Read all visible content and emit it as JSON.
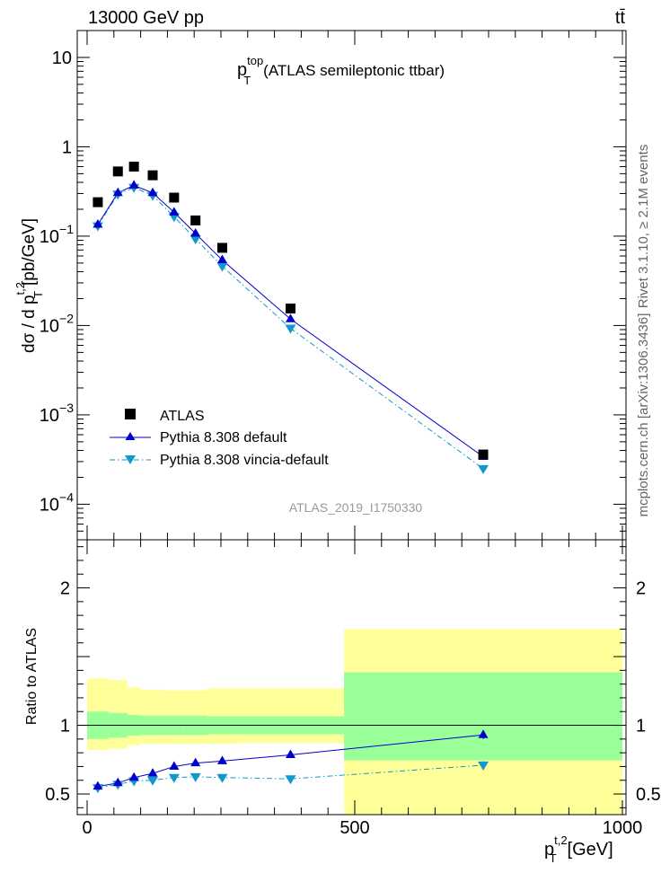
{
  "header": {
    "left": "13000 GeV pp",
    "right": "tt̄"
  },
  "side_texts": {
    "rivet": "Rivet 3.1.10, ≥ 2.1M events",
    "mcplots": "mcplots.cern.ch [arXiv:1306.3436]"
  },
  "chart_data": {
    "type": "scatter",
    "title_main": "p",
    "title_sup": "top",
    "title_sub": "T",
    "title_rest": "(ATLAS semileptonic ttbar)",
    "watermark": "ATLAS_2019_I1750330",
    "ylabel_main": {
      "a": "dσ / d p",
      "sup": "t,2",
      "sub": "T",
      "b": "[pb/GeV]"
    },
    "ylabel_ratio": "Ratio to ATLAS",
    "xlabel": {
      "main": "p",
      "sup": "t,2",
      "sub": "T",
      "rest": "[GeV]"
    },
    "xlim": [
      0,
      1000
    ],
    "ylim_main": [
      4e-05,
      20
    ],
    "yscale_main": "log",
    "ylim_ratio": [
      0.35,
      2.35
    ],
    "x_ticks": [
      "0",
      "500",
      "1000"
    ],
    "ratio_y_ticks": [
      "0.5",
      "1",
      "2"
    ],
    "main_y_ticks": [
      {
        "base": "10",
        "exp": "−4"
      },
      {
        "base": "10",
        "exp": "−3"
      },
      {
        "base": "10",
        "exp": "−2"
      },
      {
        "base": "10",
        "exp": "−1"
      },
      {
        "base": "1",
        "exp": ""
      },
      {
        "base": "10",
        "exp": ""
      }
    ],
    "legend_position": "bottom-left",
    "x": [
      20,
      57.5,
      87.5,
      122.5,
      162.5,
      202.5,
      252.5,
      380,
      740
    ],
    "bin_edges": [
      0,
      40,
      75,
      100,
      145,
      180,
      225,
      280,
      480,
      1000
    ],
    "series": [
      {
        "name": "ATLAS",
        "style": "data",
        "color": "#000000",
        "values": [
          0.24,
          0.53,
          0.6,
          0.48,
          0.27,
          0.15,
          0.074,
          0.0155,
          0.00036
        ]
      },
      {
        "name": "Pythia 8.308 default",
        "style": "line-triangle-up",
        "color": "#0000cc",
        "values": [
          0.135,
          0.305,
          0.37,
          0.305,
          0.185,
          0.107,
          0.054,
          0.0118,
          0.00034
        ]
      },
      {
        "name": "Pythia 8.308 vincia-default",
        "style": "dashdot-triangle-down",
        "color": "#1199cc",
        "values": [
          0.13,
          0.295,
          0.35,
          0.285,
          0.165,
          0.093,
          0.046,
          0.0093,
          0.00025
        ]
      }
    ],
    "ratio_series": [
      {
        "name": "Pythia 8.308 default",
        "values": [
          0.555,
          0.58,
          0.62,
          0.65,
          0.7,
          0.725,
          0.74,
          0.785,
          0.93
        ]
      },
      {
        "name": "Pythia 8.308 vincia-default",
        "values": [
          0.545,
          0.57,
          0.595,
          0.6,
          0.62,
          0.625,
          0.62,
          0.61,
          0.71
        ]
      }
    ],
    "ratio_bands": {
      "inner": [
        [
          0.9,
          1.1
        ],
        [
          0.91,
          1.09
        ],
        [
          0.925,
          1.075
        ],
        [
          0.93,
          1.07
        ],
        [
          0.93,
          1.07
        ],
        [
          0.93,
          1.07
        ],
        [
          0.935,
          1.065
        ],
        [
          0.935,
          1.065
        ],
        [
          0.745,
          1.385
        ]
      ],
      "outer": [
        [
          0.82,
          1.34
        ],
        [
          0.83,
          1.33
        ],
        [
          0.855,
          1.275
        ],
        [
          0.865,
          1.26
        ],
        [
          0.865,
          1.255
        ],
        [
          0.865,
          1.255
        ],
        [
          0.865,
          1.27
        ],
        [
          0.87,
          1.27
        ],
        [
          0.0,
          1.7
        ]
      ],
      "inner_color": "#99ff99",
      "outer_color": "#ffff99"
    }
  }
}
